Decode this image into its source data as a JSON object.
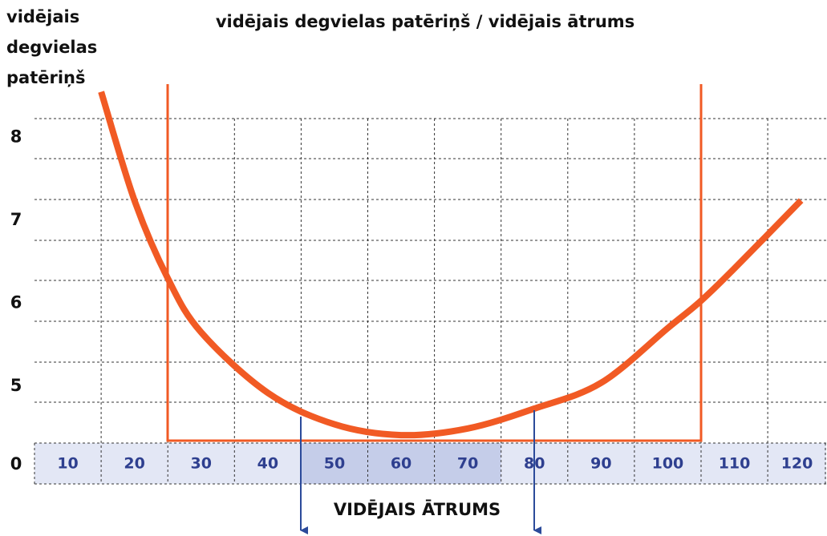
{
  "chart_data": {
    "type": "line",
    "title": "vidējais degvielas patēriņš / vidējais ātrums",
    "y_label_lines": [
      "vidējais",
      "degvielas",
      "patēriņš"
    ],
    "x_label": "VIDĒJAIS ĀTRUMS",
    "categories": [
      "10",
      "20",
      "30",
      "40",
      "50",
      "60",
      "70",
      "80",
      "90",
      "100",
      "110",
      "120"
    ],
    "category_colors": [
      "#e3e7f5",
      "#e3e7f5",
      "#e3e7f5",
      "#e3e7f5",
      "#c5cde9",
      "#c5cde9",
      "#c5cde9",
      "#e3e7f5",
      "#e3e7f5",
      "#e3e7f5",
      "#e3e7f5",
      "#e3e7f5"
    ],
    "origin_label": 0,
    "yticks": [
      5,
      6,
      7,
      8
    ],
    "series": [
      {
        "color": "#f15a24",
        "x": [
          15,
          20,
          25,
          30,
          40,
          50,
          60,
          70,
          80,
          90,
          100,
          105,
          110,
          120
        ],
        "values": [
          8.55,
          7.24,
          6.3,
          5.65,
          4.92,
          4.54,
          4.41,
          4.49,
          4.73,
          5.04,
          5.7,
          6.03,
          6.42,
          7.24
        ]
      }
    ]
  }
}
